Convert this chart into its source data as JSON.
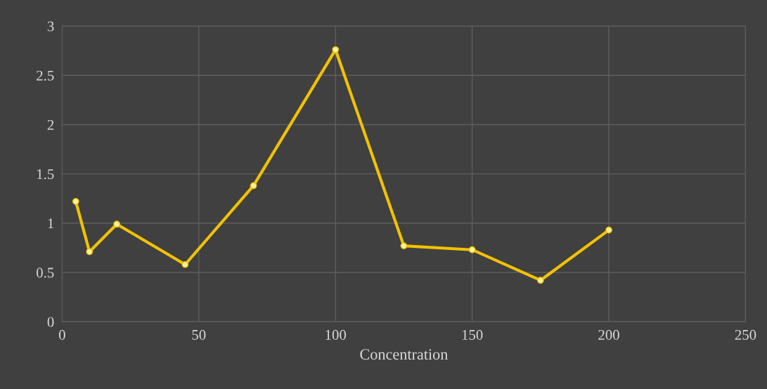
{
  "chart_data": {
    "type": "line",
    "xlabel": "Concentration",
    "x": [
      5,
      10,
      20,
      45,
      70,
      100,
      125,
      150,
      175,
      200
    ],
    "series": [
      {
        "color": "#f2c200",
        "values": [
          1.22,
          0.71,
          0.99,
          0.58,
          1.38,
          2.76,
          0.77,
          0.73,
          0.42,
          0.93
        ]
      }
    ],
    "xlim": [
      0,
      250
    ],
    "xticks": [
      0,
      50,
      100,
      150,
      200,
      250
    ],
    "ylim": [
      0,
      3
    ],
    "yticks": [
      0,
      0.5,
      1,
      1.5,
      2,
      2.5,
      3
    ],
    "grid": true,
    "marker": "circle",
    "line_style": "solid"
  }
}
